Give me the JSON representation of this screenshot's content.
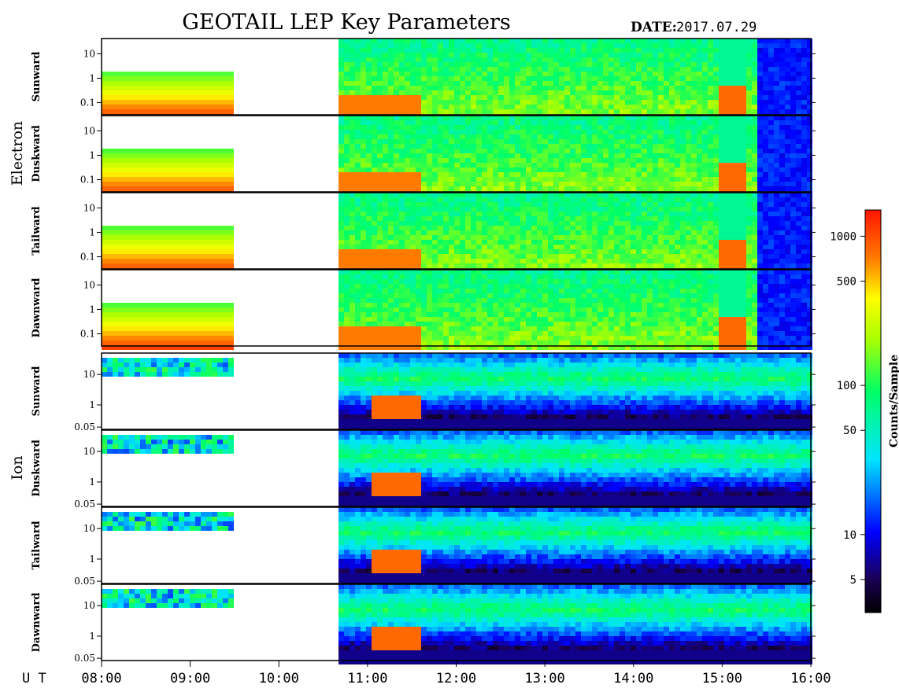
{
  "header": {
    "title": "GEOTAIL LEP Key Parameters",
    "date_label": "DATE:",
    "date_value": "2017.07.29"
  },
  "groups": [
    {
      "label": "Electron"
    },
    {
      "label": "Ion"
    }
  ],
  "colorbar": {
    "label": "Counts/Sample",
    "ticks": [
      5,
      10,
      50,
      100,
      500,
      1000
    ],
    "range": [
      3,
      1500
    ],
    "scale": "log"
  },
  "xaxis": {
    "prefix": "U T",
    "ticks": [
      "08:00",
      "09:00",
      "10:00",
      "11:00",
      "12:00",
      "13:00",
      "14:00",
      "15:00",
      "16:00"
    ]
  },
  "chart_data": {
    "type": "heatmap",
    "title": "GEOTAIL LEP Key Parameters",
    "date": "2017.07.29",
    "x_range_hours": [
      8.0,
      16.0
    ],
    "data_gap_hours": [
      9.55,
      10.65
    ],
    "electron_panels": [
      {
        "label": "Sunward",
        "yticks": [
          "10",
          "1",
          "0.1"
        ],
        "yscale": "log"
      },
      {
        "label": "Duskward",
        "yticks": [
          "10",
          "1",
          "0.1"
        ],
        "yscale": "log"
      },
      {
        "label": "Tailward",
        "yticks": [
          "10",
          "1",
          "0.1"
        ],
        "yscale": "log"
      },
      {
        "label": "Dawnward",
        "yticks": [
          "10",
          "1",
          "0.1"
        ],
        "yscale": "log"
      }
    ],
    "ion_panels": [
      {
        "label": "Sunward",
        "yticks": [
          "10",
          "1",
          "0.05"
        ],
        "yscale": "log"
      },
      {
        "label": "Duskward",
        "yticks": [
          "10",
          "1",
          "0.05"
        ],
        "yscale": "log"
      },
      {
        "label": "Tailward",
        "yticks": [
          "10",
          "1",
          "0.05"
        ],
        "yscale": "log"
      },
      {
        "label": "Dawnward",
        "yticks": [
          "10",
          "1",
          "0.05"
        ],
        "yscale": "log"
      }
    ]
  }
}
